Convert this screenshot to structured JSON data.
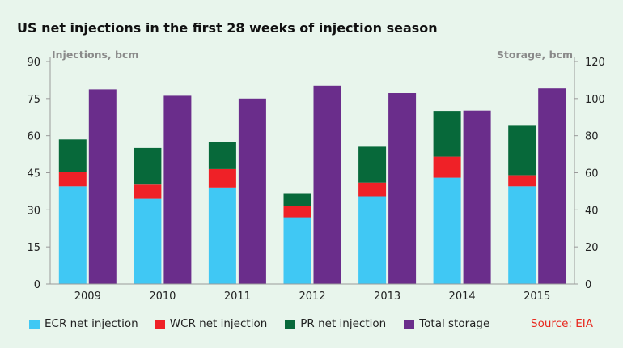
{
  "chart_data": {
    "type": "bar",
    "title": "US net injections in the first 28 weeks of injection season",
    "left_axis_label": "Injections, bcm",
    "right_axis_label": "Storage, bcm",
    "categories": [
      "2009",
      "2010",
      "2011",
      "2012",
      "2013",
      "2014",
      "2015"
    ],
    "left_axis": {
      "min": 0,
      "max": 90,
      "ticks": [
        0,
        15,
        30,
        45,
        60,
        75,
        90
      ]
    },
    "right_axis": {
      "min": 0,
      "max": 120,
      "ticks": [
        0,
        20,
        40,
        60,
        80,
        100,
        120
      ]
    },
    "stacked_series": [
      {
        "name": "ECR net injection",
        "color": "#40c8f4",
        "axis": "left",
        "values": [
          39.5,
          34.5,
          39,
          27,
          35.5,
          43,
          39.5
        ]
      },
      {
        "name": "WCR net injection",
        "color": "#ef2127",
        "axis": "left",
        "values": [
          6,
          6,
          7.5,
          4.5,
          5.5,
          8.5,
          4.5
        ]
      },
      {
        "name": "PR net injection",
        "color": "#07693a",
        "axis": "left",
        "values": [
          13,
          14.5,
          11,
          5,
          14.5,
          18.5,
          20
        ]
      }
    ],
    "bar_series": [
      {
        "name": "Total storage",
        "color": "#6a2d8b",
        "axis": "right",
        "values": [
          105,
          101.5,
          100,
          107,
          103,
          93.5,
          105.5
        ]
      }
    ],
    "grid": false,
    "legend_position": "bottom",
    "source": "Source: EIA"
  }
}
